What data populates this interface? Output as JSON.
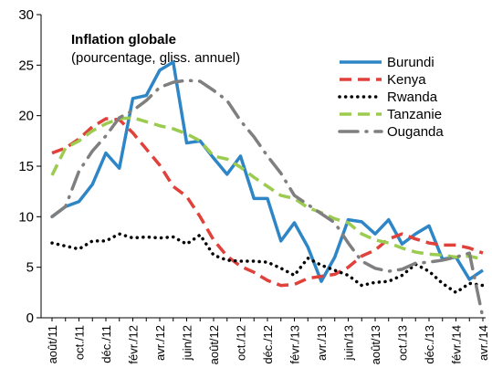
{
  "chart_data": {
    "type": "line",
    "title": "Inflation globale",
    "subtitle": "(pourcentage, gliss. annuel)",
    "categories": [
      "août/11",
      null,
      "oct./11",
      null,
      "déc./11",
      null,
      "févr./12",
      null,
      "avr./12",
      null,
      "juin/12",
      null,
      "août/12",
      null,
      "oct./12",
      null,
      "déc./12",
      null,
      "févr./13",
      null,
      "avr./13",
      null,
      "juin/13",
      null,
      "août/13",
      null,
      "oct./13",
      null,
      "déc./13",
      null,
      "févr./14",
      null,
      "avr./14"
    ],
    "ylim": [
      0,
      30
    ],
    "yticks": [
      0,
      5,
      10,
      15,
      20,
      25,
      30
    ],
    "grid": false,
    "legend": "upper right",
    "series": [
      {
        "name": "Burundi",
        "color": "#2e86c6",
        "dash": "solid",
        "values": [
          10,
          11,
          11.5,
          13.2,
          16.3,
          14.8,
          21.7,
          22,
          24.5,
          25.3,
          17.3,
          17.5,
          15.8,
          14.2,
          16,
          11.8,
          11.8,
          7.6,
          9.4,
          7,
          3.6,
          6,
          9.7,
          9.5,
          8.3,
          9.7,
          7.3,
          8.3,
          9.1,
          5.8,
          6,
          3.8,
          4.7
        ]
      },
      {
        "name": "Kenya",
        "color": "#e0413a",
        "dash": "dashed",
        "values": [
          16.3,
          16.8,
          17.7,
          18.9,
          19.7,
          19.6,
          18.3,
          16.7,
          15.1,
          13,
          12,
          10,
          7.7,
          6.1,
          5.1,
          4.5,
          3.7,
          3.2,
          3.3,
          3.9,
          4.1,
          4.3,
          5,
          6.1,
          6.7,
          7.8,
          8.3,
          7.8,
          7.4,
          7.2,
          7.2,
          6.9,
          6.4
        ]
      },
      {
        "name": "Rwanda",
        "color": "#000000",
        "dash": "dotted",
        "values": [
          7.4,
          7.1,
          6.8,
          7.6,
          7.6,
          8.3,
          7.9,
          8,
          7.9,
          8,
          7.3,
          8.2,
          6.2,
          5.7,
          5.6,
          5.6,
          5.5,
          4.9,
          4.2,
          5.9,
          5.2,
          4.7,
          4.2,
          3.2,
          3.5,
          3.6,
          4.2,
          5.3,
          4.6,
          3.4,
          2.5,
          3.4,
          3.2
        ]
      },
      {
        "name": "Tanzanie",
        "color": "#9bcc4f",
        "dash": "dashed",
        "values": [
          14.1,
          16.8,
          17.5,
          18.5,
          19.2,
          19.7,
          19.8,
          19.4,
          19,
          18.7,
          18.2,
          17.5,
          16,
          15.7,
          14.9,
          13.9,
          13,
          12.1,
          11.8,
          10.9,
          10.4,
          9.8,
          9.4,
          8.3,
          7.7,
          7.4,
          6.9,
          6.5,
          6.3,
          6.2,
          6,
          6.1,
          5.8
        ]
      },
      {
        "name": "Ouganda",
        "color": "#7f7f7f",
        "dash": "dash-dot",
        "values": [
          10,
          11,
          14.5,
          16.5,
          18,
          19.8,
          20.5,
          21.5,
          22.8,
          23.3,
          23.5,
          23.4,
          22.5,
          21.5,
          19.5,
          17.9,
          16,
          14.3,
          12.1,
          11.2,
          10.3,
          9.4,
          7.4,
          5.6,
          4.9,
          4.6,
          4.8,
          5.4,
          5.5,
          5.7,
          6,
          6.4,
          0
        ]
      }
    ]
  }
}
